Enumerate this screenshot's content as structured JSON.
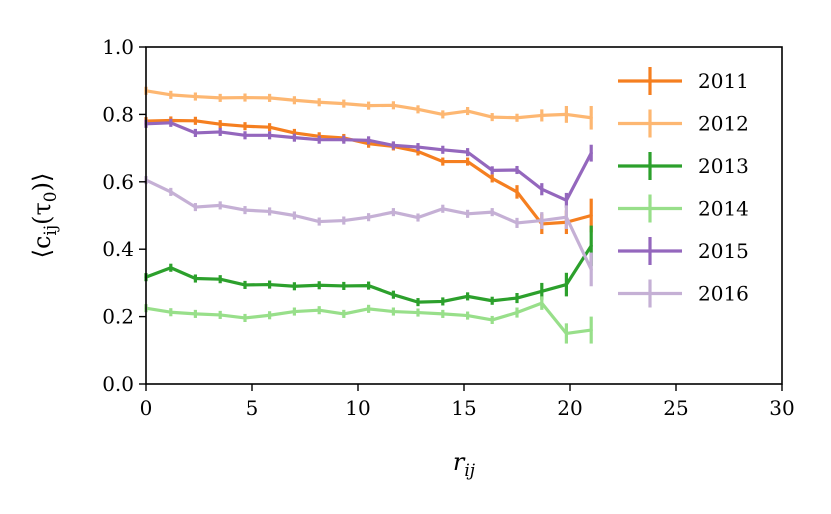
{
  "chart_data": {
    "type": "line",
    "xlabel": "r_ij",
    "ylabel": "⟨c_ij(τ_0)⟩",
    "xlim": [
      0,
      30
    ],
    "ylim": [
      0.0,
      1.0
    ],
    "xticks": [
      "0",
      "5",
      "10",
      "15",
      "20",
      "25",
      "30"
    ],
    "yticks": [
      "0.0",
      "0.2",
      "0.4",
      "0.6",
      "0.8",
      "1.0"
    ],
    "grid": false,
    "legend_position": "right",
    "x": [
      0,
      1.17,
      2.33,
      3.5,
      4.67,
      5.83,
      7.0,
      8.17,
      9.33,
      10.5,
      11.67,
      12.83,
      14.0,
      15.17,
      16.33,
      17.5,
      18.67,
      19.83,
      21.0
    ],
    "series": [
      {
        "name": "2011",
        "color": "#f57f20",
        "values": [
          0.78,
          0.782,
          0.781,
          0.771,
          0.765,
          0.762,
          0.745,
          0.735,
          0.73,
          0.713,
          0.705,
          0.69,
          0.66,
          0.66,
          0.61,
          0.57,
          0.475,
          0.48,
          0.5
        ],
        "errors": [
          0.004,
          0.004,
          0.004,
          0.004,
          0.004,
          0.004,
          0.004,
          0.004,
          0.004,
          0.005,
          0.005,
          0.006,
          0.007,
          0.008,
          0.012,
          0.02,
          0.03,
          0.035,
          0.05
        ]
      },
      {
        "name": "2012",
        "color": "#fdb772",
        "values": [
          0.87,
          0.858,
          0.853,
          0.849,
          0.85,
          0.849,
          0.842,
          0.836,
          0.832,
          0.826,
          0.827,
          0.815,
          0.8,
          0.81,
          0.792,
          0.79,
          0.797,
          0.8,
          0.79
        ],
        "errors": [
          0.003,
          0.003,
          0.003,
          0.003,
          0.003,
          0.003,
          0.003,
          0.003,
          0.003,
          0.003,
          0.003,
          0.004,
          0.005,
          0.006,
          0.008,
          0.012,
          0.018,
          0.025,
          0.035
        ]
      },
      {
        "name": "2013",
        "color": "#2ca02c",
        "values": [
          0.317,
          0.345,
          0.313,
          0.311,
          0.294,
          0.295,
          0.29,
          0.293,
          0.291,
          0.292,
          0.265,
          0.243,
          0.245,
          0.26,
          0.247,
          0.255,
          0.275,
          0.295,
          0.41
        ],
        "errors": [
          0.005,
          0.005,
          0.005,
          0.005,
          0.005,
          0.005,
          0.005,
          0.005,
          0.005,
          0.005,
          0.005,
          0.006,
          0.007,
          0.008,
          0.01,
          0.015,
          0.025,
          0.035,
          0.06
        ]
      },
      {
        "name": "2014",
        "color": "#98df8a",
        "values": [
          0.225,
          0.213,
          0.208,
          0.205,
          0.196,
          0.204,
          0.215,
          0.219,
          0.208,
          0.223,
          0.215,
          0.212,
          0.208,
          0.203,
          0.19,
          0.212,
          0.24,
          0.15,
          0.16
        ],
        "errors": [
          0.004,
          0.004,
          0.004,
          0.004,
          0.004,
          0.004,
          0.004,
          0.004,
          0.004,
          0.004,
          0.005,
          0.005,
          0.006,
          0.008,
          0.01,
          0.015,
          0.02,
          0.03,
          0.04
        ]
      },
      {
        "name": "2015",
        "color": "#9467bd",
        "values": [
          0.772,
          0.775,
          0.745,
          0.748,
          0.738,
          0.738,
          0.731,
          0.725,
          0.725,
          0.723,
          0.708,
          0.703,
          0.695,
          0.688,
          0.634,
          0.635,
          0.578,
          0.545,
          0.685
        ],
        "errors": [
          0.004,
          0.004,
          0.004,
          0.004,
          0.004,
          0.004,
          0.004,
          0.004,
          0.004,
          0.004,
          0.005,
          0.005,
          0.006,
          0.006,
          0.008,
          0.012,
          0.018,
          0.022,
          0.025
        ]
      },
      {
        "name": "2016",
        "color": "#c5b0d5",
        "values": [
          0.605,
          0.57,
          0.525,
          0.53,
          0.516,
          0.512,
          0.5,
          0.482,
          0.485,
          0.495,
          0.51,
          0.494,
          0.52,
          0.505,
          0.51,
          0.478,
          0.485,
          0.495,
          0.34
        ],
        "errors": [
          0.005,
          0.005,
          0.005,
          0.005,
          0.005,
          0.005,
          0.005,
          0.005,
          0.005,
          0.005,
          0.006,
          0.006,
          0.007,
          0.008,
          0.01,
          0.015,
          0.025,
          0.035,
          0.05
        ]
      }
    ]
  }
}
